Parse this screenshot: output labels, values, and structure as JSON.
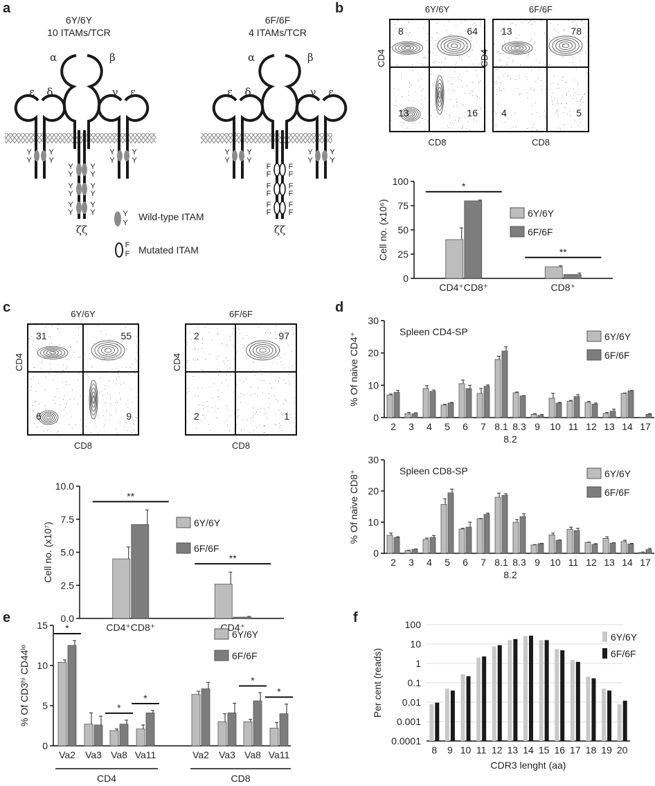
{
  "panel_labels": [
    "a",
    "b",
    "c",
    "d",
    "e",
    "f"
  ],
  "colors": {
    "wt": "#bdbdbd",
    "mut": "#7d7d7d",
    "black": "#1a1a1a",
    "itam_fill": "#8c8c8c",
    "membrane": "#9a9a9a"
  },
  "diagram": {
    "left": {
      "title": "6Y/6Y",
      "subtitle": "10 ITAMs/TCR",
      "residue": "Y"
    },
    "right": {
      "title": "6F/6F",
      "subtitle": "4 ITAMs/TCR",
      "residue": "F"
    },
    "greek": {
      "alpha": "α",
      "beta": "β",
      "epsilon": "ε",
      "delta": "δ",
      "gamma": "γ",
      "zeta": "ζζ"
    },
    "legend": {
      "wild_type": "Wild-type ITAM",
      "mutated": "Mutated ITAM"
    }
  },
  "flow_plots": [
    {
      "panel": "b",
      "title": "6Y/6Y",
      "xlabel": "CD8",
      "ylabel": "CD4",
      "quadrants": {
        "ul": "8",
        "ur": "64",
        "ll": "13",
        "lr": "16"
      }
    },
    {
      "panel": "b",
      "title": "6F/6F",
      "xlabel": "CD8",
      "ylabel": "CD4",
      "quadrants": {
        "ul": "13",
        "ur": "78",
        "ll": "4",
        "lr": "5"
      }
    },
    {
      "panel": "c",
      "title": "6Y/6Y",
      "xlabel": "CD8",
      "ylabel": "CD4",
      "quadrants": {
        "ul": "31",
        "ur": "55",
        "ll": "6",
        "lr": "9"
      }
    },
    {
      "panel": "c",
      "title": "6F/6F",
      "xlabel": "CD8",
      "ylabel": "CD4",
      "quadrants": {
        "ul": "2",
        "ur": "97",
        "ll": "2",
        "lr": "1"
      }
    }
  ],
  "chart_data": [
    {
      "panel": "b",
      "type": "bar",
      "ylabel": "Cell no. (x10⁶)",
      "ylim": [
        0,
        100
      ],
      "yticks": [
        "0",
        "25",
        "50",
        "75",
        "100"
      ],
      "categories": [
        "CD4⁺CD8⁺",
        "CD8⁺"
      ],
      "legend": "top-right",
      "series": [
        {
          "name": "6Y/6Y",
          "values": [
            40,
            12
          ],
          "errors": [
            12,
            1
          ]
        },
        {
          "name": "6F/6F",
          "values": [
            80,
            4
          ],
          "errors": [
            0.8,
            1.5
          ]
        }
      ],
      "significance": [
        {
          "category": 0,
          "label": "*"
        },
        {
          "category": 1,
          "label": "**"
        }
      ]
    },
    {
      "panel": "c",
      "type": "bar",
      "ylabel": "Cell no. (x10⁷)",
      "ylim": [
        0,
        10
      ],
      "yticks": [
        "0.0",
        "2.5",
        "5.0",
        "7.5",
        "10.0"
      ],
      "categories": [
        "CD4⁺CD8⁺",
        "CD4⁺"
      ],
      "legend": "top-right",
      "series": [
        {
          "name": "6Y/6Y",
          "values": [
            4.5,
            2.6
          ],
          "errors": [
            0.9,
            0.9
          ]
        },
        {
          "name": "6F/6F",
          "values": [
            7.1,
            0.1
          ],
          "errors": [
            1.1,
            0.05
          ]
        }
      ],
      "significance": [
        {
          "category": 0,
          "label": "**"
        },
        {
          "category": 1,
          "label": "**"
        }
      ]
    },
    {
      "panel": "d",
      "type": "bar",
      "title": "Spleen CD4-SP",
      "ylabel": "% Of naive CD4⁺",
      "ylim": [
        0,
        30
      ],
      "yticks": [
        "0",
        "10",
        "20",
        "30"
      ],
      "categories": [
        "2",
        "3",
        "4",
        "5",
        "6",
        "7",
        "8.1",
        "8.3",
        "9",
        "10",
        "11",
        "12",
        "13",
        "14",
        "17"
      ],
      "extra_xlabel": "8.2",
      "legend": "top-right",
      "series": [
        {
          "name": "6Y/6Y",
          "values": [
            7,
            1.2,
            9,
            3.9,
            10.5,
            7.5,
            18,
            7.7,
            1,
            6,
            5.1,
            4.7,
            1.3,
            7.5,
            0.05
          ],
          "errors": [
            0.3,
            0.4,
            0.9,
            0.2,
            1.1,
            1.5,
            1,
            0.2,
            0.2,
            1.5,
            0.2,
            0.3,
            0.3,
            0.1,
            0
          ]
        },
        {
          "name": "6F/6F",
          "values": [
            7.8,
            1.2,
            8.1,
            4.5,
            9,
            9.7,
            20.6,
            6.7,
            0.7,
            4.5,
            6.5,
            4.2,
            2,
            8.3,
            1
          ],
          "errors": [
            0.6,
            0.3,
            0.4,
            0.2,
            1,
            0.4,
            1.3,
            0.1,
            0.3,
            0.2,
            0.6,
            0.3,
            0.6,
            0.1,
            0.2
          ]
        }
      ]
    },
    {
      "panel": "d",
      "type": "bar",
      "title": "Spleen CD8-SP",
      "ylabel": "% Of naive CD8⁺",
      "ylim": [
        0,
        30
      ],
      "yticks": [
        "0",
        "10",
        "20",
        "30"
      ],
      "categories": [
        "2",
        "3",
        "4",
        "5",
        "6",
        "7",
        "8.1",
        "8.3",
        "9",
        "10",
        "11",
        "12",
        "13",
        "14",
        "17"
      ],
      "extra_xlabel": "8.2",
      "legend": "top-right",
      "series": [
        {
          "name": "6Y/6Y",
          "values": [
            5.8,
            0.9,
            4.5,
            15.7,
            7.8,
            11.1,
            18,
            10,
            2.7,
            5.9,
            7.7,
            3.5,
            4.8,
            3.8,
            0.3
          ],
          "errors": [
            0.7,
            0.1,
            0.4,
            1.8,
            0.2,
            0.1,
            1.3,
            0.8,
            0.1,
            0.6,
            0.7,
            0.1,
            0.5,
            0.4,
            0.1
          ]
        },
        {
          "name": "6F/6F",
          "values": [
            5.1,
            1.3,
            5.1,
            19.4,
            8.4,
            12.5,
            18.6,
            11.8,
            3.1,
            4.2,
            7.3,
            2.9,
            3.3,
            3.0,
            1.2
          ],
          "errors": [
            0.2,
            0.1,
            0.6,
            1.2,
            1.6,
            0.4,
            0.5,
            0.9,
            0.1,
            0.1,
            0.7,
            0.2,
            0.1,
            0.2,
            0.4
          ]
        }
      ]
    },
    {
      "panel": "e",
      "type": "bar",
      "ylabel": "% Of CD3ʰⁱ CD44ˡᵒ",
      "ylim": [
        0,
        15
      ],
      "yticks": [
        "0",
        "5",
        "10",
        "15"
      ],
      "categories": [
        "Va2",
        "Va3",
        "Va8",
        "Va11",
        "Va2",
        "Va3",
        "Va8",
        "Va11"
      ],
      "groups": [
        "CD4",
        "CD8"
      ],
      "legend": "top-right",
      "series": [
        {
          "name": "6Y/6Y",
          "values": [
            10.4,
            2.7,
            1.9,
            2.1,
            6.4,
            3.0,
            3.0,
            2.2
          ],
          "errors": [
            0.3,
            1.4,
            0.2,
            0.5,
            0.4,
            1.0,
            0.3,
            0.7
          ]
        },
        {
          "name": "6F/6F",
          "values": [
            12.5,
            2.6,
            2.7,
            4.1,
            7.1,
            4.1,
            5.6,
            4.0
          ],
          "errors": [
            0.6,
            1.1,
            0.5,
            0.3,
            0.8,
            1.2,
            1.0,
            1.2
          ]
        }
      ],
      "significance": [
        {
          "category": 0,
          "label": "*"
        },
        {
          "category": 2,
          "label": "*"
        },
        {
          "category": 3,
          "label": "*"
        },
        {
          "category": 6,
          "label": "*"
        },
        {
          "category": 7,
          "label": "*"
        }
      ]
    },
    {
      "panel": "f",
      "type": "bar",
      "xlabel": "CDR3 lenght (aa)",
      "ylabel": "Per cent (reads)",
      "yscale": "log",
      "ylim": [
        0.0001,
        100
      ],
      "yticks": [
        "0.0001",
        "0.001",
        "0.01",
        "0.1",
        "1",
        "10",
        "100"
      ],
      "grid": true,
      "legend": "top-right",
      "categories": [
        "8",
        "9",
        "10",
        "11",
        "12",
        "13",
        "14",
        "15",
        "16",
        "17",
        "18",
        "19",
        "20"
      ],
      "series": [
        {
          "name": "6Y/6Y",
          "values": [
            0.008,
            0.05,
            0.28,
            2,
            7.5,
            16,
            26,
            16,
            5.5,
            1.5,
            0.21,
            0.05,
            0.008
          ]
        },
        {
          "name": "6F/6F",
          "values": [
            0.0095,
            0.04,
            0.22,
            2.3,
            8.7,
            18,
            27,
            16,
            4.8,
            1.2,
            0.17,
            0.04,
            0.012
          ]
        }
      ]
    }
  ]
}
